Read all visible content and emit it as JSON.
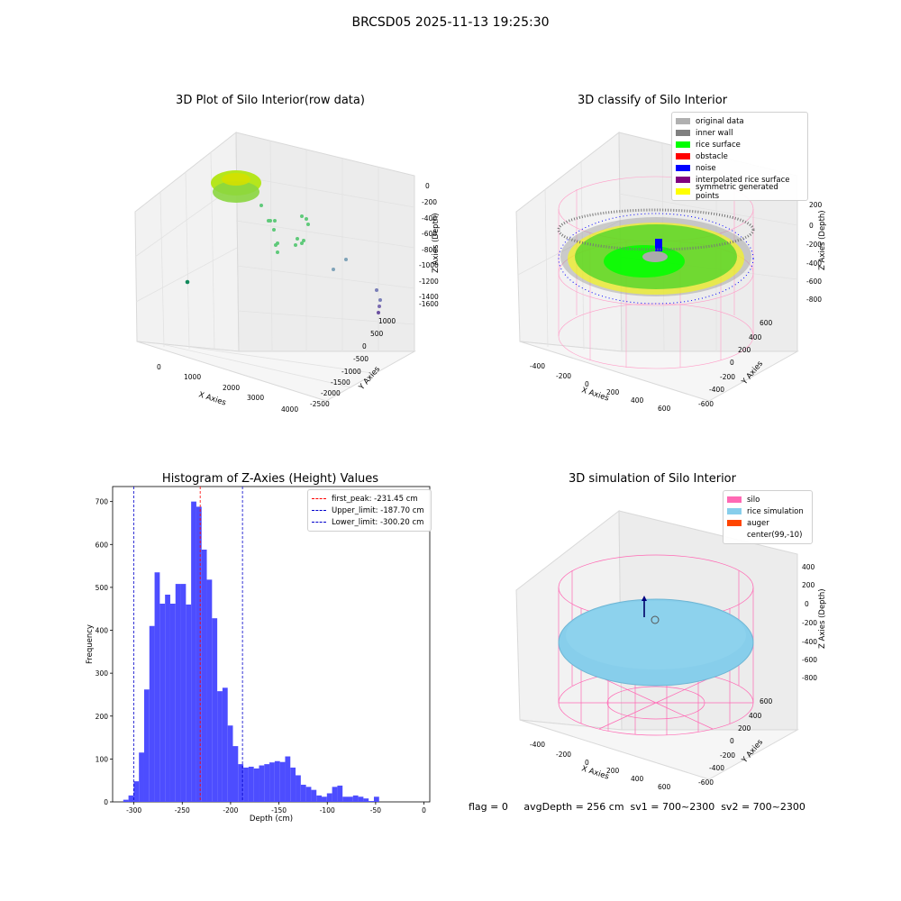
{
  "suptitle": "BRCSD05 2025-11-13 19:25:30",
  "panels": {
    "raw": {
      "title": "3D Plot of Silo Interior(row data)",
      "xlabel": "X Axies",
      "ylabel": "Y Axies",
      "zlabel": "Z Axies (Depth)",
      "xticks": [
        "0",
        "1000",
        "2000",
        "3000",
        "4000"
      ],
      "yticks": [
        "1000",
        "500",
        "0",
        "-500",
        "-1000",
        "-1500",
        "-2000",
        "-2500"
      ],
      "zticks": [
        "0",
        "-200",
        "-400",
        "-600",
        "-800",
        "-1000",
        "-1200",
        "-1400",
        "-1600"
      ]
    },
    "classify": {
      "title": "3D classify of Silo Interior",
      "xlabel": "X Axies",
      "ylabel": "Y Axies",
      "zlabel": "Z Axies (Depth)",
      "xticks": [
        "-400",
        "-200",
        "0",
        "200",
        "400",
        "600"
      ],
      "yticks": [
        "600",
        "400",
        "200",
        "0",
        "-200",
        "-400",
        "-600"
      ],
      "zticks": [
        "400",
        "200",
        "0",
        "-200",
        "-400",
        "-600",
        "-800"
      ],
      "legend": [
        {
          "label": "original data",
          "color": "#b0b0b0"
        },
        {
          "label": "inner wall",
          "color": "#808080"
        },
        {
          "label": "rice surface",
          "color": "#00ff00"
        },
        {
          "label": "obstacle",
          "color": "#ff0000"
        },
        {
          "label": "noise",
          "color": "#0000ff"
        },
        {
          "label": "interpolated rice surface",
          "color": "#800080"
        },
        {
          "label": "symmetric generated points",
          "color": "#ffff00"
        }
      ]
    },
    "simulation": {
      "title": "3D simulation of Silo Interior",
      "xlabel": "X Axies",
      "ylabel": "Y Axies",
      "zlabel": "Z Axies (Depth)",
      "xticks": [
        "-400",
        "-200",
        "0",
        "200",
        "400",
        "600"
      ],
      "yticks": [
        "600",
        "400",
        "200",
        "0",
        "-200",
        "-400",
        "-600"
      ],
      "zticks": [
        "400",
        "200",
        "0",
        "-200",
        "-400",
        "-600",
        "-800"
      ],
      "legend": [
        {
          "label": "silo",
          "color": "#ff69b4"
        },
        {
          "label": "rice simulation",
          "color": "#87ceeb"
        },
        {
          "label": "auger",
          "color": "#ff4500"
        },
        {
          "label": "center(99,-10)",
          "color": ""
        }
      ]
    }
  },
  "chart_data": {
    "type": "bar",
    "title": "Histogram of Z-Axies (Height) Values",
    "xlabel": "Depth (cm)",
    "ylabel": "Frequency",
    "xlim": [
      -322,
      6
    ],
    "ylim": [
      0,
      735
    ],
    "bin_width": 5.4,
    "bin_start": -311.0,
    "values": [
      5,
      15,
      48,
      115,
      262,
      410,
      535,
      462,
      483,
      462,
      508,
      508,
      460,
      700,
      688,
      588,
      518,
      428,
      258,
      266,
      178,
      130,
      88,
      80,
      82,
      78,
      85,
      88,
      92,
      95,
      93,
      106,
      80,
      62,
      40,
      35,
      28,
      15,
      12,
      20,
      35,
      38,
      12,
      12,
      15,
      12,
      8,
      2,
      12
    ],
    "xticks": [
      -300,
      -250,
      -200,
      -150,
      -100,
      -50,
      0
    ],
    "yticks": [
      0,
      100,
      200,
      300,
      400,
      500,
      600,
      700
    ],
    "color": "#4d4dff",
    "vlines": [
      {
        "label": "first_peak: -231.45 cm",
        "x": -231.45,
        "color": "#ff0000"
      },
      {
        "label": "Upper_limit: -187.70 cm",
        "x": -187.7,
        "color": "#0000cc"
      },
      {
        "label": "Lower_limit: -300.20 cm",
        "x": -300.2,
        "color": "#0000cc"
      }
    ]
  },
  "footer": {
    "flag": "flag = 0",
    "avg": "avgDepth = 256 cm  sv1 = 700~2300  sv2 = 700~2300"
  }
}
